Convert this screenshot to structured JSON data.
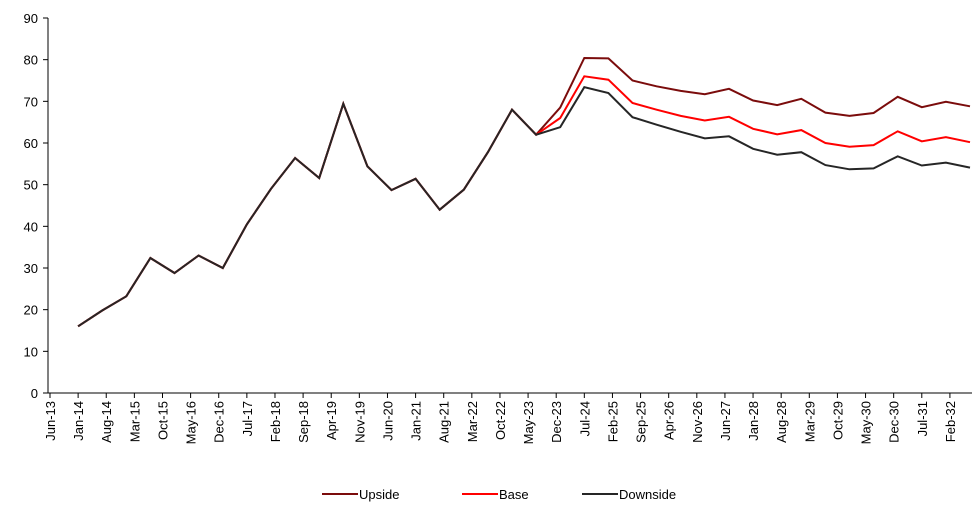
{
  "chart_data": {
    "type": "line",
    "x": [
      "2014-01",
      "2014-07",
      "2015-01",
      "2015-07",
      "2016-01",
      "2016-07",
      "2017-01",
      "2017-07",
      "2018-01",
      "2018-07",
      "2019-01",
      "2019-07",
      "2020-01",
      "2020-07",
      "2021-01",
      "2021-07",
      "2022-01",
      "2022-07",
      "2023-01",
      "2023-07",
      "2024-01",
      "2024-07",
      "2025-01",
      "2025-07",
      "2026-01",
      "2026-07",
      "2027-01",
      "2027-07",
      "2028-01",
      "2028-07",
      "2029-01",
      "2029-07",
      "2030-01",
      "2030-07",
      "2031-01",
      "2031-07",
      "2032-01",
      "2032-07"
    ],
    "series": [
      {
        "name": "Upside",
        "color": "#7b0c0c",
        "values": [
          16,
          19.8,
          23.2,
          32.4,
          28.8,
          33,
          30,
          40.5,
          49,
          56.4,
          51.6,
          69.4,
          54.4,
          48.7,
          51.4,
          44,
          48.8,
          57.8,
          68,
          62,
          68.5,
          80.4,
          80.3,
          75,
          73.6,
          72.5,
          71.7,
          73,
          70.2,
          69.1,
          70.6,
          67.3,
          66.5,
          67.2,
          71.1,
          68.6,
          69.9,
          68.8
        ]
      },
      {
        "name": "Base",
        "color": "#ff0000",
        "values": [
          16,
          19.8,
          23.2,
          32.4,
          28.8,
          33,
          30,
          40.5,
          49,
          56.4,
          51.6,
          69.4,
          54.4,
          48.7,
          51.4,
          44,
          48.8,
          57.8,
          68,
          62,
          66,
          76,
          75.2,
          69.6,
          68,
          66.5,
          65.4,
          66.3,
          63.4,
          62.1,
          63.1,
          60,
          59.1,
          59.5,
          62.8,
          60.4,
          61.4,
          60.2
        ]
      },
      {
        "name": "Downside",
        "color": "#262626",
        "values": [
          16,
          19.8,
          23.2,
          32.4,
          28.8,
          33,
          30,
          40.5,
          49,
          56.4,
          51.6,
          69.4,
          54.4,
          48.7,
          51.4,
          44,
          48.8,
          57.8,
          68,
          62,
          63.8,
          73.4,
          72,
          66.2,
          64.4,
          62.7,
          61.1,
          61.6,
          58.6,
          57.2,
          57.8,
          54.7,
          53.7,
          53.9,
          56.8,
          54.6,
          55.3,
          54.1
        ]
      }
    ],
    "xlim": [
      "2013-06",
      "2032-07"
    ],
    "xticks": [
      {
        "value": "2013-06",
        "label": "Jun-13"
      },
      {
        "value": "2014-01",
        "label": "Jan-14"
      },
      {
        "value": "2014-08",
        "label": "Aug-14"
      },
      {
        "value": "2015-03",
        "label": "Mar-15"
      },
      {
        "value": "2015-10",
        "label": "Oct-15"
      },
      {
        "value": "2016-05",
        "label": "May-16"
      },
      {
        "value": "2016-12",
        "label": "Dec-16"
      },
      {
        "value": "2017-07",
        "label": "Jul-17"
      },
      {
        "value": "2018-02",
        "label": "Feb-18"
      },
      {
        "value": "2018-09",
        "label": "Sep-18"
      },
      {
        "value": "2019-04",
        "label": "Apr-19"
      },
      {
        "value": "2019-11",
        "label": "Nov-19"
      },
      {
        "value": "2020-06",
        "label": "Jun-20"
      },
      {
        "value": "2021-01",
        "label": "Jan-21"
      },
      {
        "value": "2021-08",
        "label": "Aug-21"
      },
      {
        "value": "2022-03",
        "label": "Mar-22"
      },
      {
        "value": "2022-10",
        "label": "Oct-22"
      },
      {
        "value": "2023-05",
        "label": "May-23"
      },
      {
        "value": "2023-12",
        "label": "Dec-23"
      },
      {
        "value": "2024-07",
        "label": "Jul-24"
      },
      {
        "value": "2025-02",
        "label": "Feb-25"
      },
      {
        "value": "2025-09",
        "label": "Sep-25"
      },
      {
        "value": "2026-04",
        "label": "Apr-26"
      },
      {
        "value": "2026-11",
        "label": "Nov-26"
      },
      {
        "value": "2027-06",
        "label": "Jun-27"
      },
      {
        "value": "2028-01",
        "label": "Jan-28"
      },
      {
        "value": "2028-08",
        "label": "Aug-28"
      },
      {
        "value": "2029-03",
        "label": "Mar-29"
      },
      {
        "value": "2029-10",
        "label": "Oct-29"
      },
      {
        "value": "2030-05",
        "label": "May-30"
      },
      {
        "value": "2030-12",
        "label": "Dec-30"
      },
      {
        "value": "2031-07",
        "label": "Jul-31"
      },
      {
        "value": "2032-02",
        "label": "Feb-32"
      }
    ],
    "ylim": [
      0,
      90
    ],
    "yticks": [
      0,
      10,
      20,
      30,
      40,
      50,
      60,
      70,
      80,
      90
    ],
    "grid": false,
    "legend": "bottom"
  }
}
